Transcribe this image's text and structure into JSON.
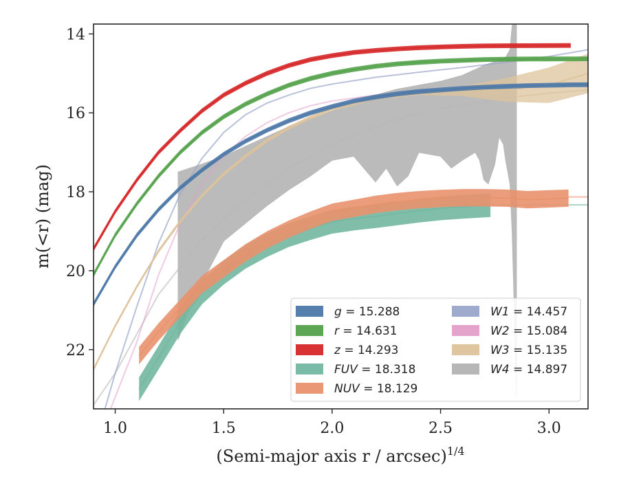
{
  "chart_data": {
    "type": "line",
    "xlabel": "(Semi-major axis r / arcsec)",
    "xlabel_superscript": "1/4",
    "ylabel": "m(<r) (mag)",
    "xlim": [
      0.9,
      3.18
    ],
    "ylim": [
      23.5,
      13.75
    ],
    "y_inverted": true,
    "x_ticks": [
      1.0,
      1.5,
      2.0,
      2.5,
      3.0
    ],
    "x_tick_labels": [
      "1.0",
      "1.5",
      "2.0",
      "2.5",
      "3.0"
    ],
    "y_ticks": [
      14,
      16,
      18,
      20,
      22
    ],
    "y_tick_labels": [
      "14",
      "16",
      "18",
      "20",
      "22"
    ],
    "grid": false,
    "legend_placement": "lower-right",
    "series": [
      {
        "name": "g",
        "mag": "15.288",
        "color": "#4c78a8",
        "kind": "band",
        "x": [
          0.9,
          1.0,
          1.1,
          1.2,
          1.3,
          1.4,
          1.5,
          1.6,
          1.7,
          1.8,
          1.9,
          2.0,
          2.1,
          2.2,
          2.3,
          2.4,
          2.5,
          2.6,
          2.7,
          2.8,
          2.9,
          3.0,
          3.1,
          3.18
        ],
        "y": [
          20.85,
          19.9,
          19.1,
          18.45,
          17.9,
          17.45,
          17.05,
          16.72,
          16.44,
          16.2,
          16.0,
          15.84,
          15.7,
          15.6,
          15.52,
          15.46,
          15.42,
          15.38,
          15.35,
          15.33,
          15.31,
          15.3,
          15.29,
          15.288
        ],
        "width": 0.06
      },
      {
        "name": "r",
        "mag": "14.631",
        "color": "#54a24b",
        "kind": "band",
        "x": [
          0.9,
          1.0,
          1.1,
          1.2,
          1.3,
          1.4,
          1.5,
          1.6,
          1.7,
          1.8,
          1.9,
          2.0,
          2.1,
          2.2,
          2.3,
          2.4,
          2.5,
          2.6,
          2.7,
          2.8,
          2.9,
          3.0,
          3.1,
          3.18
        ],
        "y": [
          20.1,
          19.1,
          18.3,
          17.6,
          17.0,
          16.5,
          16.1,
          15.78,
          15.52,
          15.3,
          15.13,
          15.0,
          14.9,
          14.82,
          14.76,
          14.72,
          14.69,
          14.67,
          14.65,
          14.64,
          14.635,
          14.633,
          14.632,
          14.631
        ],
        "width": 0.06
      },
      {
        "name": "z",
        "mag": "14.293",
        "color": "#d62728",
        "kind": "band",
        "x": [
          0.9,
          1.0,
          1.1,
          1.2,
          1.3,
          1.4,
          1.5,
          1.6,
          1.7,
          1.8,
          1.9,
          2.0,
          2.1,
          2.2,
          2.3,
          2.4,
          2.5,
          2.6,
          2.7,
          2.8,
          2.9,
          3.0,
          3.1
        ],
        "y": [
          19.45,
          18.5,
          17.7,
          17.0,
          16.45,
          15.95,
          15.55,
          15.25,
          15.0,
          14.8,
          14.65,
          14.55,
          14.47,
          14.42,
          14.38,
          14.35,
          14.33,
          14.315,
          14.305,
          14.3,
          14.297,
          14.295,
          14.293
        ],
        "width": 0.06
      },
      {
        "name": "FUV",
        "mag": "18.318",
        "color": "#72b7a1",
        "kind": "band",
        "x": [
          1.11,
          1.2,
          1.3,
          1.4,
          1.5,
          1.6,
          1.7,
          1.8,
          1.9,
          2.0,
          2.1,
          2.2,
          2.3,
          2.4,
          2.5,
          2.6,
          2.7,
          2.73
        ],
        "y": [
          23.0,
          22.2,
          21.3,
          20.55,
          20.05,
          19.65,
          19.35,
          19.1,
          18.92,
          18.76,
          18.68,
          18.62,
          18.55,
          18.48,
          18.42,
          18.38,
          18.35,
          18.34
        ],
        "width": 0.3,
        "tail_x": [
          2.73,
          3.18
        ],
        "tail_y": [
          18.33,
          18.33
        ]
      },
      {
        "name": "NUV",
        "mag": "18.129",
        "color": "#e8916d",
        "kind": "band",
        "x": [
          1.11,
          1.2,
          1.3,
          1.4,
          1.5,
          1.6,
          1.7,
          1.8,
          1.9,
          2.0,
          2.1,
          2.2,
          2.3,
          2.4,
          2.5,
          2.6,
          2.7,
          2.8,
          2.9,
          3.0,
          3.09
        ],
        "y": [
          22.15,
          21.55,
          20.95,
          20.35,
          19.95,
          19.55,
          19.22,
          18.95,
          18.72,
          18.52,
          18.42,
          18.32,
          18.25,
          18.2,
          18.17,
          18.15,
          18.15,
          18.16,
          18.2,
          18.18,
          18.16
        ],
        "width": 0.22,
        "tail_x": [
          3.09,
          3.18
        ],
        "tail_y": [
          18.13,
          18.13
        ]
      },
      {
        "name": "W1",
        "mag": "14.457",
        "color": "#9aa6c9",
        "kind": "line",
        "x": [
          0.9,
          1.0,
          1.1,
          1.2,
          1.3,
          1.4,
          1.5,
          1.6,
          1.7,
          1.8,
          1.9,
          2.0,
          2.2,
          2.4,
          2.6,
          2.8,
          3.0,
          3.18
        ],
        "y": [
          24.5,
          22.6,
          20.9,
          19.3,
          18.05,
          17.15,
          16.5,
          16.05,
          15.75,
          15.55,
          15.38,
          15.27,
          15.1,
          14.97,
          14.85,
          14.72,
          14.57,
          14.4
        ],
        "width": 0.05
      },
      {
        "name": "W2",
        "mag": "15.084",
        "color": "#e39ec8",
        "kind": "line",
        "x": [
          0.9,
          1.0,
          1.1,
          1.2,
          1.3,
          1.4,
          1.5,
          1.6,
          1.7,
          1.8,
          1.9,
          2.0,
          2.2,
          2.4,
          2.6,
          2.8,
          3.0,
          3.18
        ],
        "y": [
          24.6,
          23.2,
          21.8,
          20.1,
          18.8,
          17.8,
          17.1,
          16.6,
          16.25,
          16.0,
          15.82,
          15.7,
          15.55,
          15.46,
          15.4,
          15.35,
          15.3,
          15.25
        ],
        "width": 0.05
      },
      {
        "name": "W3",
        "mag": "15.135",
        "color": "#ddc39b",
        "kind": "band",
        "x": [
          0.9,
          1.0,
          1.1,
          1.2,
          1.3,
          1.4,
          1.5,
          1.6,
          1.7,
          1.8,
          1.9,
          2.0,
          2.2,
          2.4,
          2.6,
          2.8,
          3.0,
          3.18
        ],
        "y": [
          22.5,
          21.4,
          20.4,
          19.5,
          18.75,
          18.1,
          17.55,
          17.1,
          16.7,
          16.38,
          16.12,
          15.9,
          15.62,
          15.5,
          15.45,
          15.42,
          15.3,
          15.0
        ],
        "width_x": [
          0.9,
          2.5,
          2.7,
          2.85,
          3.0,
          3.18
        ],
        "width_y": [
          0.05,
          0.05,
          0.2,
          0.35,
          0.45,
          0.5
        ]
      },
      {
        "name": "W4",
        "mag": "14.897",
        "color": "#b7b7b7",
        "kind": "fill",
        "upper_x": [
          1.29,
          1.4,
          1.5,
          1.6,
          1.7,
          1.8,
          1.9,
          2.0,
          2.1,
          2.2,
          2.3,
          2.4,
          2.5,
          2.6,
          2.7,
          2.8,
          2.82,
          2.83,
          2.84,
          2.85
        ],
        "upper_y": [
          17.5,
          17.3,
          17.1,
          16.85,
          16.6,
          16.35,
          16.15,
          15.95,
          15.75,
          15.55,
          15.4,
          15.3,
          15.2,
          15.05,
          14.8,
          14.6,
          14.4,
          13.8,
          13.5,
          13.75
        ],
        "lower_x": [
          2.85,
          2.84,
          2.83,
          2.82,
          2.8,
          2.79,
          2.77,
          2.75,
          2.72,
          2.7,
          2.68,
          2.66,
          2.6,
          2.55,
          2.5,
          2.4,
          2.35,
          2.3,
          2.25,
          2.2,
          2.1,
          2.0,
          1.95,
          1.9,
          1.8,
          1.7,
          1.6,
          1.5,
          1.4,
          1.35,
          1.3,
          1.29
        ],
        "lower_y": [
          23.2,
          21.0,
          19.0,
          17.8,
          17.2,
          16.8,
          16.6,
          17.3,
          17.8,
          17.7,
          17.2,
          17.0,
          17.2,
          17.4,
          17.1,
          17.0,
          17.6,
          17.85,
          17.4,
          17.75,
          17.1,
          17.2,
          17.4,
          17.6,
          17.95,
          18.35,
          18.8,
          19.25,
          20.3,
          20.8,
          21.6,
          21.75
        ],
        "center_x": [
          0.9,
          1.0,
          1.2,
          1.4,
          1.6,
          1.8,
          2.0,
          2.2,
          2.4,
          2.6,
          2.8,
          3.0,
          3.18
        ],
        "center_y": [
          23.4,
          22.6,
          20.6,
          19.2,
          18.2,
          17.4,
          16.8,
          16.35,
          16.0,
          15.8,
          15.62,
          15.5,
          15.42
        ]
      }
    ],
    "legend": [
      {
        "name": "g",
        "label": "15.288"
      },
      {
        "name": "r",
        "label": "14.631"
      },
      {
        "name": "z",
        "label": "14.293"
      },
      {
        "name": "FUV",
        "label": "18.318"
      },
      {
        "name": "NUV",
        "label": "18.129"
      },
      {
        "name": "W1",
        "label": "14.457"
      },
      {
        "name": "W2",
        "label": "15.084"
      },
      {
        "name": "W3",
        "label": "15.135"
      },
      {
        "name": "W4",
        "label": "14.897"
      }
    ]
  }
}
